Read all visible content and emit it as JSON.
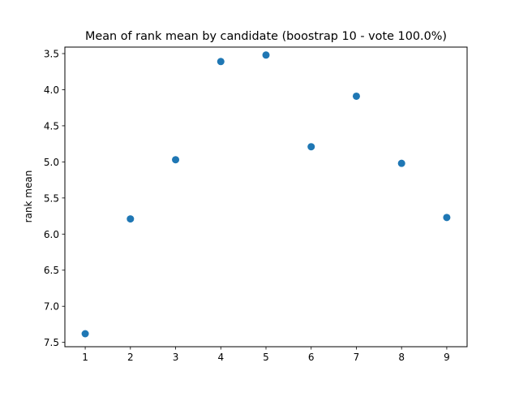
{
  "chart_data": {
    "type": "scatter",
    "title": "Mean of rank mean by candidate (boostrap 10 - vote 100.0%)",
    "xlabel": "",
    "ylabel": "rank mean",
    "xlim": [
      0.55,
      9.45
    ],
    "ylim": [
      7.56,
      3.41
    ],
    "y_inverted": true,
    "grid": false,
    "marker_color": "#1f77b4",
    "x_ticks": [
      1,
      2,
      3,
      4,
      5,
      6,
      7,
      8,
      9
    ],
    "y_ticks": [
      3.5,
      4.0,
      4.5,
      5.0,
      5.5,
      6.0,
      6.5,
      7.0,
      7.5
    ],
    "y_tick_labels": [
      "3.5",
      "4.0",
      "4.5",
      "5.0",
      "5.5",
      "6.0",
      "6.5",
      "7.0",
      "7.5"
    ],
    "points": [
      {
        "x": 1,
        "y": 7.38
      },
      {
        "x": 2,
        "y": 5.79
      },
      {
        "x": 3,
        "y": 4.97
      },
      {
        "x": 4,
        "y": 3.61
      },
      {
        "x": 5,
        "y": 3.52
      },
      {
        "x": 6,
        "y": 4.79
      },
      {
        "x": 7,
        "y": 4.09
      },
      {
        "x": 8,
        "y": 5.02
      },
      {
        "x": 9,
        "y": 5.77
      }
    ]
  }
}
